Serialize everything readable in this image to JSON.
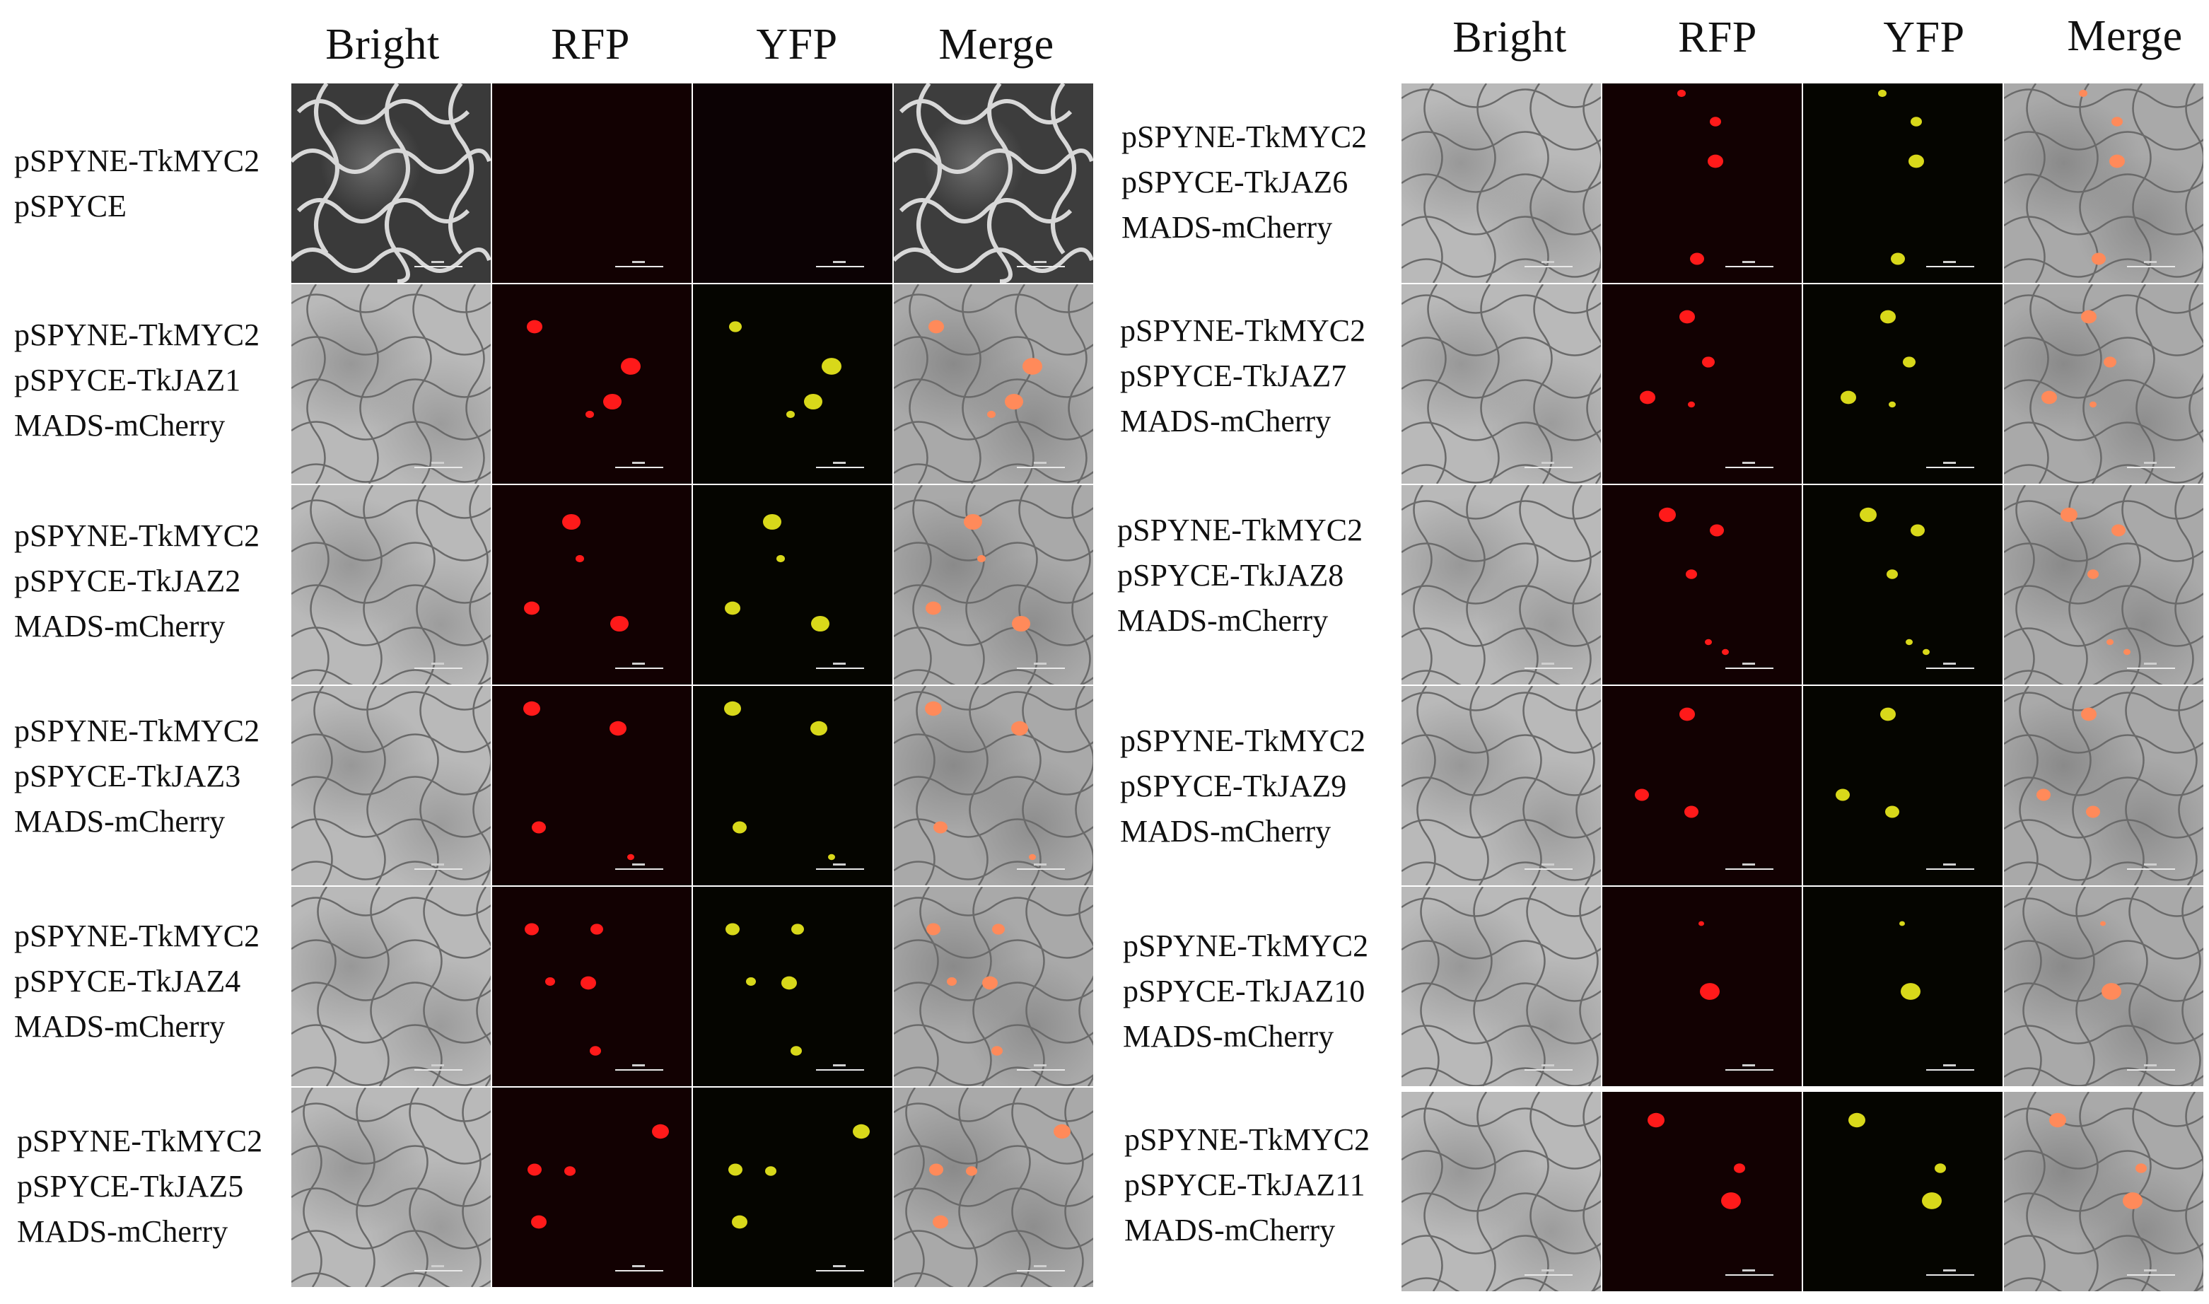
{
  "figure": {
    "columns": [
      "Bright",
      "RFP",
      "YFP",
      "Merge"
    ],
    "left_rows": [
      {
        "lines": [
          "pSPYNE-TkMYC2",
          "pSPYCE"
        ]
      },
      {
        "lines": [
          "pSPYNE-TkMYC2",
          "pSPYCE-TkJAZ1",
          "MADS-mCherry"
        ]
      },
      {
        "lines": [
          "pSPYNE-TkMYC2",
          "pSPYCE-TkJAZ2",
          "MADS-mCherry"
        ]
      },
      {
        "lines": [
          "pSPYNE-TkMYC2",
          "pSPYCE-TkJAZ3",
          "MADS-mCherry"
        ]
      },
      {
        "lines": [
          "pSPYNE-TkMYC2",
          "pSPYCE-TkJAZ4",
          "MADS-mCherry"
        ]
      },
      {
        "lines": [
          "pSPYNE-TkMYC2",
          "pSPYCE-TkJAZ5",
          "MADS-mCherry"
        ]
      }
    ],
    "right_rows": [
      {
        "lines": [
          "pSPYNE-TkMYC2",
          "pSPYCE-TkJAZ6",
          "MADS-mCherry"
        ]
      },
      {
        "lines": [
          "pSPYNE-TkMYC2",
          "pSPYCE-TkJAZ7",
          "MADS-mCherry"
        ]
      },
      {
        "lines": [
          "pSPYNE-TkMYC2",
          "pSPYCE-TkJAZ8",
          "MADS-mCherry"
        ]
      },
      {
        "lines": [
          "pSPYNE-TkMYC2",
          "pSPYCE-TkJAZ9",
          "MADS-mCherry"
        ]
      },
      {
        "lines": [
          "pSPYNE-TkMYC2",
          "pSPYCE-TkJAZ10",
          "MADS-mCherry"
        ]
      },
      {
        "lines": [
          "pSPYNE-TkMYC2",
          "pSPYCE-TkJAZ11",
          "MADS-mCherry"
        ]
      }
    ],
    "colors": {
      "rfp_signal": "#ff1a1a",
      "yfp_signal": "#d8d81a",
      "merge_signal": "#ff8a5a",
      "cell_outline": "#6a6a6a"
    }
  }
}
